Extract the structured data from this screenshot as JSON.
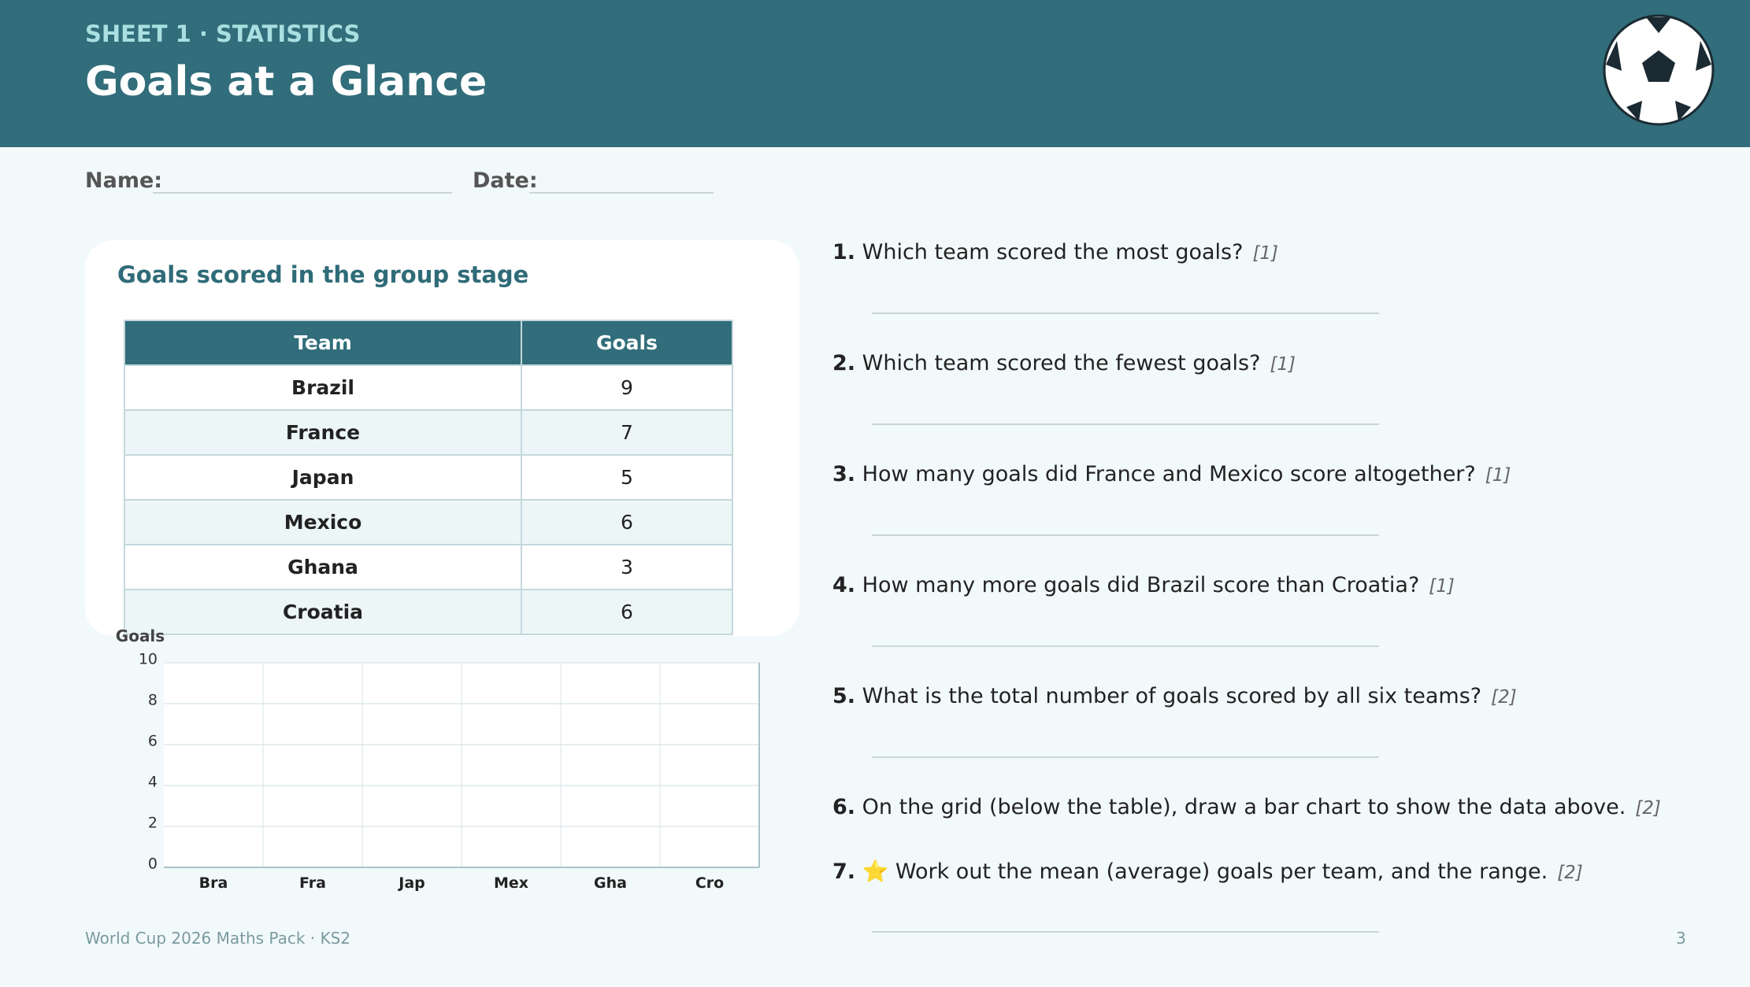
{
  "header": {
    "eyebrow": "SHEET 1 · STATISTICS",
    "title": "Goals at a Glance"
  },
  "fields": [
    "Name:",
    "Date:"
  ],
  "card": {
    "title": "Goals scored in the group stage",
    "table": {
      "columns": [
        "Team",
        "Goals"
      ],
      "rows": [
        [
          "Brazil",
          9
        ],
        [
          "France",
          7
        ],
        [
          "Japan",
          5
        ],
        [
          "Mexico",
          6
        ],
        [
          "Ghana",
          3
        ],
        [
          "Croatia",
          6
        ]
      ]
    }
  },
  "grid": {
    "y_label": "Goals",
    "ylim": [
      0,
      10
    ],
    "yticks": [
      0,
      2,
      4,
      6,
      8,
      10
    ],
    "categories": [
      "Bra",
      "Fra",
      "Jap",
      "Mex",
      "Gha",
      "Cro"
    ]
  },
  "questions": [
    {
      "number": "1.",
      "text": "Which team scored the most goals?",
      "marks": "[1]",
      "answer_line": true
    },
    {
      "number": "2.",
      "text": "Which team scored the fewest goals?",
      "marks": "[1]",
      "answer_line": true
    },
    {
      "number": "3.",
      "text": "How many goals did France and Mexico score altogether?",
      "marks": "[1]",
      "answer_line": true
    },
    {
      "number": "4.",
      "text": "How many more goals did Brazil score than Croatia?",
      "marks": "[1]",
      "answer_line": true
    },
    {
      "number": "5.",
      "text": "What is the total number of goals scored by all six teams?",
      "marks": "[2]",
      "answer_line": true
    },
    {
      "number": "6.",
      "text": "On the grid (below the table), draw a bar chart to show the data above.",
      "marks": "[2]",
      "answer_line": false
    },
    {
      "number": "7.",
      "text": "⭐ Work out the mean (average) goals per team, and the range.",
      "marks": "[2]",
      "answer_line": true
    }
  ],
  "footer": {
    "left": "World Cup 2026 Maths Pack · KS2",
    "page": 3
  }
}
